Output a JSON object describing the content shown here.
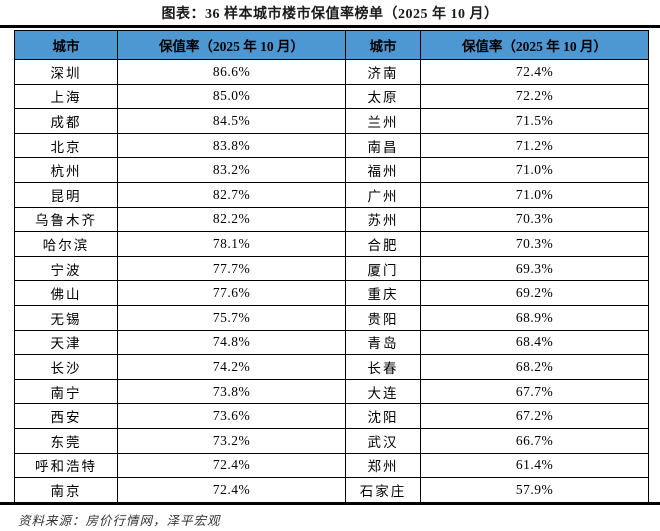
{
  "title": "图表：36 样本城市楼市保值率榜单（2025 年 10 月）",
  "source": "资料来源：房价行情网，泽平宏观",
  "colors": {
    "header_bg": "#4D97D3",
    "border": "#000000",
    "rule": "#000000"
  },
  "table": {
    "headers": [
      "城市",
      "保值率（2025 年 10 月）",
      "城市",
      "保值率（2025 年 10 月）"
    ],
    "rows": [
      [
        "深圳",
        "86.6%",
        "济南",
        "72.4%"
      ],
      [
        "上海",
        "85.0%",
        "太原",
        "72.2%"
      ],
      [
        "成都",
        "84.5%",
        "兰州",
        "71.5%"
      ],
      [
        "北京",
        "83.8%",
        "南昌",
        "71.2%"
      ],
      [
        "杭州",
        "83.2%",
        "福州",
        "71.0%"
      ],
      [
        "昆明",
        "82.7%",
        "广州",
        "71.0%"
      ],
      [
        "乌鲁木齐",
        "82.2%",
        "苏州",
        "70.3%"
      ],
      [
        "哈尔滨",
        "78.1%",
        "合肥",
        "70.3%"
      ],
      [
        "宁波",
        "77.7%",
        "厦门",
        "69.3%"
      ],
      [
        "佛山",
        "77.6%",
        "重庆",
        "69.2%"
      ],
      [
        "无锡",
        "75.7%",
        "贵阳",
        "68.9%"
      ],
      [
        "天津",
        "74.8%",
        "青岛",
        "68.4%"
      ],
      [
        "长沙",
        "74.2%",
        "长春",
        "68.2%"
      ],
      [
        "南宁",
        "73.8%",
        "大连",
        "67.7%"
      ],
      [
        "西安",
        "73.6%",
        "沈阳",
        "67.2%"
      ],
      [
        "东莞",
        "73.2%",
        "武汉",
        "66.7%"
      ],
      [
        "呼和浩特",
        "72.4%",
        "郑州",
        "61.4%"
      ],
      [
        "南京",
        "72.4%",
        "石家庄",
        "57.9%"
      ]
    ]
  },
  "chart_data": {
    "type": "table",
    "title": "36 样本城市楼市保值率榜单（2025 年 10 月）",
    "columns": [
      "城市",
      "保值率（2025 年 10 月）%"
    ],
    "rows": [
      [
        "深圳",
        86.6
      ],
      [
        "上海",
        85.0
      ],
      [
        "成都",
        84.5
      ],
      [
        "北京",
        83.8
      ],
      [
        "杭州",
        83.2
      ],
      [
        "昆明",
        82.7
      ],
      [
        "乌鲁木齐",
        82.2
      ],
      [
        "哈尔滨",
        78.1
      ],
      [
        "宁波",
        77.7
      ],
      [
        "佛山",
        77.6
      ],
      [
        "无锡",
        75.7
      ],
      [
        "天津",
        74.8
      ],
      [
        "长沙",
        74.2
      ],
      [
        "南宁",
        73.8
      ],
      [
        "西安",
        73.6
      ],
      [
        "东莞",
        73.2
      ],
      [
        "呼和浩特",
        72.4
      ],
      [
        "南京",
        72.4
      ],
      [
        "济南",
        72.4
      ],
      [
        "太原",
        72.2
      ],
      [
        "兰州",
        71.5
      ],
      [
        "南昌",
        71.2
      ],
      [
        "福州",
        71.0
      ],
      [
        "广州",
        71.0
      ],
      [
        "苏州",
        70.3
      ],
      [
        "合肥",
        70.3
      ],
      [
        "厦门",
        69.3
      ],
      [
        "重庆",
        69.2
      ],
      [
        "贵阳",
        68.9
      ],
      [
        "青岛",
        68.4
      ],
      [
        "长春",
        68.2
      ],
      [
        "大连",
        67.7
      ],
      [
        "沈阳",
        67.2
      ],
      [
        "武汉",
        66.7
      ],
      [
        "郑州",
        61.4
      ],
      [
        "石家庄",
        57.9
      ]
    ],
    "source": "资料来源：房价行情网，泽平宏观"
  }
}
